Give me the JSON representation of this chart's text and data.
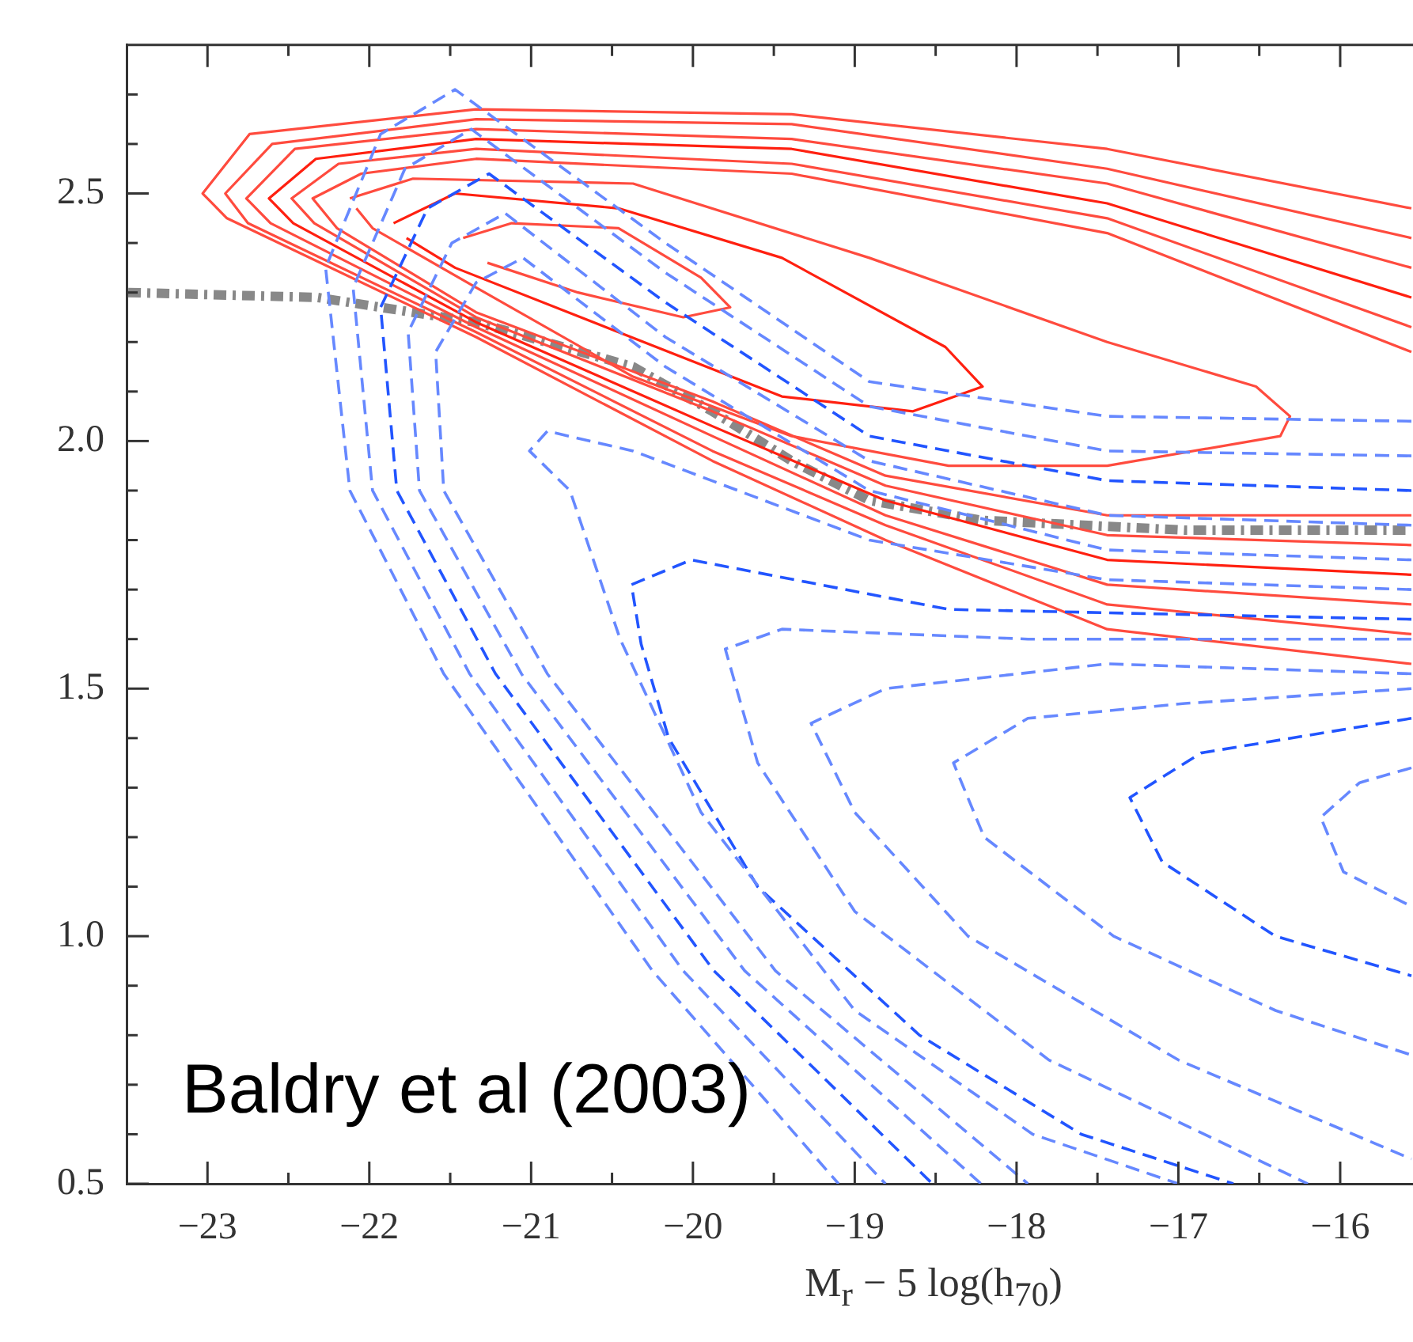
{
  "chart_data": {
    "type": "line",
    "xlabel": "M$_{r}$ − 5 log(h$_{70}$)",
    "xlim": [
      -23.5,
      -15.55
    ],
    "ylim": [
      0.5,
      2.8
    ],
    "xticks": [
      {
        "value": -23,
        "label": "−23"
      },
      {
        "value": -22.5,
        "label": null
      },
      {
        "value": -22,
        "label": "−22"
      },
      {
        "value": -21.5,
        "label": null
      },
      {
        "value": -21,
        "label": "−21"
      },
      {
        "value": -20.5,
        "label": null
      },
      {
        "value": -20,
        "label": "−20"
      },
      {
        "value": -19.5,
        "label": null
      },
      {
        "value": -19,
        "label": "−19"
      },
      {
        "value": -18.5,
        "label": null
      },
      {
        "value": -18,
        "label": "−18"
      },
      {
        "value": -17.5,
        "label": null
      },
      {
        "value": -17,
        "label": "−17"
      },
      {
        "value": -16.5,
        "label": null
      },
      {
        "value": -16,
        "label": "−16"
      }
    ],
    "yticks": [
      0.5,
      {
        "value": 0.6,
        "label": null
      },
      {
        "value": 0.7,
        "label": null
      },
      {
        "value": 0.8,
        "label": null
      },
      {
        "value": 0.9,
        "label": null
      },
      {
        "value": 1,
        "label": "1.0"
      },
      {
        "value": 1.1,
        "label": null
      },
      {
        "value": 1.2,
        "label": null
      },
      {
        "value": 1.3,
        "label": null
      },
      {
        "value": 1.4,
        "label": null
      },
      1.5,
      {
        "value": 1.6,
        "label": null
      },
      {
        "value": 1.7,
        "label": null
      },
      {
        "value": 1.8,
        "label": null
      },
      {
        "value": 1.9,
        "label": null
      },
      {
        "value": 2,
        "label": "2.0"
      },
      {
        "value": 2.1,
        "label": null
      },
      {
        "value": 2.2,
        "label": null
      },
      {
        "value": 2.3,
        "label": null
      },
      {
        "value": 2.4,
        "label": null
      },
      2.5,
      {
        "value": 2.6,
        "label": null
      },
      {
        "value": 2.7,
        "label": null
      }
    ],
    "marker": "none",
    "line_style": "solid",
    "annotations": [
      "Baldry et al (2003)"
    ],
    "series": [
      {
        "color": "#6688ff",
        "line_style": "dashed",
        "x": [
          -15.56,
          -17.44,
          -18.91,
          -20.17,
          -21.47,
          -21.93,
          -22.27,
          -22.12,
          -21.54,
          -20.25,
          -19.1
        ],
        "values": [
          2.04,
          2.05,
          2.12,
          2.4,
          2.71,
          2.62,
          2.35,
          1.9,
          1.53,
          0.93,
          0.5
        ]
      },
      {
        "color": "#6688ff",
        "line_style": "dashed",
        "x": [
          -15.56,
          -17.44,
          -18.91,
          -20.17,
          -21.37,
          -21.78,
          -22.1,
          -21.98,
          -21.38,
          -20.06,
          -18.81
        ],
        "values": [
          1.97,
          1.98,
          2.07,
          2.34,
          2.63,
          2.55,
          2.31,
          1.9,
          1.53,
          0.93,
          0.5
        ]
      },
      {
        "color": "#2255ff",
        "line_style": "dashed",
        "x": [
          -15.56,
          -17.44,
          -18.91,
          -20.17,
          -21.26,
          -21.64,
          -21.93,
          -21.83,
          -21.22,
          -19.87,
          -18.52
        ],
        "values": [
          1.9,
          1.92,
          2.01,
          2.28,
          2.54,
          2.47,
          2.27,
          1.9,
          1.53,
          0.93,
          0.5
        ]
      },
      {
        "color": "#6688ff",
        "line_style": "dashed",
        "x": [
          -15.56,
          -17.44,
          -18.91,
          -20.17,
          -21.16,
          -21.49,
          -21.76,
          -21.69,
          -21.06,
          -19.68,
          -18.22
        ],
        "values": [
          1.83,
          1.85,
          1.96,
          2.21,
          2.46,
          2.4,
          2.22,
          1.9,
          1.53,
          0.93,
          0.5
        ]
      },
      {
        "color": "#6688ff",
        "line_style": "dashed",
        "x": [
          -15.56,
          -17.44,
          -18.91,
          -20.17,
          -21.05,
          -21.34,
          -21.59,
          -21.54,
          -20.9,
          -19.49,
          -17.93
        ],
        "values": [
          1.76,
          1.78,
          1.9,
          2.15,
          2.37,
          2.32,
          2.18,
          1.9,
          1.53,
          0.93,
          0.5
        ]
      },
      {
        "color": "#6688ff",
        "line_style": "dashed",
        "x": [
          -15.56,
          -17.44,
          -18.91,
          -20.37,
          -20.9,
          -21.01,
          -20.76,
          -20.45,
          -19.95,
          -19.0,
          -17.9,
          -17.0
        ],
        "values": [
          1.7,
          1.72,
          1.8,
          1.98,
          2.02,
          1.98,
          1.9,
          1.6,
          1.25,
          0.85,
          0.6,
          0.5
        ]
      },
      {
        "color": "#2255ff",
        "line_style": "dashed",
        "x": [
          -15.56,
          -18.42,
          -20.01,
          -20.38,
          -20.32,
          -20.15,
          -19.6,
          -18.6,
          -17.6,
          -16.66
        ],
        "values": [
          1.64,
          1.66,
          1.76,
          1.71,
          1.59,
          1.4,
          1.1,
          0.8,
          0.6,
          0.5
        ]
      },
      {
        "color": "#6688ff",
        "line_style": "dashed",
        "x": [
          -15.56,
          -17.93,
          -19.45,
          -19.8,
          -19.6,
          -19.0,
          -17.8,
          -16.2
        ],
        "values": [
          1.6,
          1.6,
          1.62,
          1.58,
          1.35,
          1.05,
          0.75,
          0.5
        ]
      },
      {
        "color": "#6688ff",
        "line_style": "dashed",
        "x": [
          -15.56,
          -17.44,
          -18.81,
          -19.27,
          -19.0,
          -18.3,
          -17.0,
          -15.56
        ],
        "values": [
          1.53,
          1.55,
          1.5,
          1.43,
          1.25,
          1.0,
          0.75,
          0.55
        ]
      },
      {
        "color": "#6688ff",
        "line_style": "dashed",
        "x": [
          -15.56,
          -16.96,
          -17.93,
          -18.39,
          -18.2,
          -17.4,
          -16.4,
          -15.56
        ],
        "values": [
          1.5,
          1.47,
          1.44,
          1.35,
          1.2,
          1.0,
          0.85,
          0.76
        ]
      },
      {
        "color": "#2255ff",
        "line_style": "dashed",
        "x": [
          -15.56,
          -16.86,
          -17.3,
          -17.1,
          -16.4,
          -15.56
        ],
        "values": [
          1.44,
          1.37,
          1.28,
          1.15,
          1.0,
          0.92
        ]
      },
      {
        "color": "#6688ff",
        "line_style": "dashed",
        "x": [
          -15.56,
          -15.88,
          -16.12,
          -15.98,
          -15.56
        ],
        "values": [
          1.34,
          1.31,
          1.24,
          1.13,
          1.06
        ]
      },
      {
        "color": "#ff4b3e",
        "x": [
          -15.56,
          -17.44,
          -19.39,
          -21.34,
          -22.74,
          -23.03,
          -22.88,
          -21.34,
          -19.88,
          -18.81,
          -17.44,
          -15.56
        ],
        "values": [
          2.47,
          2.59,
          2.66,
          2.67,
          2.62,
          2.5,
          2.45,
          2.21,
          1.96,
          1.8,
          1.62,
          1.55
        ]
      },
      {
        "color": "#ff4b3e",
        "x": [
          -15.56,
          -17.44,
          -19.39,
          -21.34,
          -22.6,
          -22.89,
          -22.75,
          -21.34,
          -19.88,
          -18.81,
          -17.44,
          -15.56
        ],
        "values": [
          2.41,
          2.55,
          2.64,
          2.65,
          2.6,
          2.5,
          2.44,
          2.22,
          1.98,
          1.83,
          1.67,
          1.61
        ]
      },
      {
        "color": "#ff4b3e",
        "x": [
          -15.56,
          -17.44,
          -19.39,
          -21.34,
          -22.46,
          -22.76,
          -22.61,
          -21.34,
          -19.88,
          -18.81,
          -17.44,
          -15.56
        ],
        "values": [
          2.35,
          2.52,
          2.61,
          2.63,
          2.59,
          2.49,
          2.44,
          2.23,
          2.01,
          1.85,
          1.71,
          1.67
        ]
      },
      {
        "color": "#ff2010",
        "x": [
          -15.56,
          -17.44,
          -19.39,
          -21.34,
          -22.33,
          -22.62,
          -22.47,
          -21.34,
          -19.88,
          -18.81,
          -17.44,
          -15.56
        ],
        "values": [
          2.29,
          2.48,
          2.59,
          2.61,
          2.57,
          2.49,
          2.44,
          2.24,
          2.03,
          1.88,
          1.76,
          1.73
        ]
      },
      {
        "color": "#ff4b3e",
        "x": [
          -15.56,
          -17.44,
          -19.39,
          -21.34,
          -22.19,
          -22.48,
          -22.34,
          -21.34,
          -19.88,
          -18.81,
          -17.44,
          -15.56
        ],
        "values": [
          2.23,
          2.45,
          2.56,
          2.59,
          2.56,
          2.49,
          2.44,
          2.25,
          2.06,
          1.91,
          1.81,
          1.79
        ]
      },
      {
        "color": "#ff4b3e",
        "x": [
          -15.56,
          -17.44,
          -19.39,
          -21.34,
          -22.05,
          -22.35,
          -22.2,
          -21.34,
          -19.88,
          -18.81,
          -17.44,
          -15.56
        ],
        "values": [
          2.18,
          2.42,
          2.54,
          2.57,
          2.54,
          2.49,
          2.43,
          2.26,
          2.08,
          1.93,
          1.85,
          1.85
        ]
      },
      {
        "color": "#ff4b3e",
        "x": [
          -22.12,
          -21.73,
          -20.37,
          -18.91,
          -17.44,
          -16.52,
          -16.31,
          -16.37,
          -17.44,
          -18.42,
          -19.39,
          -20.37,
          -21.34,
          -21.98,
          -22.08
        ],
        "values": [
          2.49,
          2.53,
          2.52,
          2.37,
          2.2,
          2.11,
          2.05,
          2.01,
          1.95,
          1.95,
          2.01,
          2.13,
          2.31,
          2.43,
          2.47
        ]
      },
      {
        "color": "#ff2010",
        "x": [
          -21.85,
          -21.47,
          -20.46,
          -19.45,
          -18.44,
          -18.21,
          -18.64,
          -19.45,
          -20.46,
          -21.47,
          -21.77
        ],
        "values": [
          2.44,
          2.5,
          2.47,
          2.37,
          2.19,
          2.11,
          2.06,
          2.09,
          2.22,
          2.35,
          2.41
        ]
      },
      {
        "color": "#ff4b3e",
        "x": [
          -21.42,
          -21.12,
          -20.46,
          -19.95,
          -19.77,
          -20.06,
          -20.71,
          -21.27
        ],
        "values": [
          2.41,
          2.44,
          2.43,
          2.33,
          2.27,
          2.25,
          2.3,
          2.36
        ]
      },
      {
        "color": "#888888",
        "line_style": "dotted",
        "x": [
          -23.49,
          -22.32,
          -21.34,
          -20.37,
          -19.88,
          -19.39,
          -18.91,
          -18.22,
          -16.96,
          -15.56
        ],
        "values": [
          2.3,
          2.29,
          2.24,
          2.15,
          2.06,
          1.96,
          1.88,
          1.84,
          1.82,
          1.82
        ]
      }
    ]
  }
}
